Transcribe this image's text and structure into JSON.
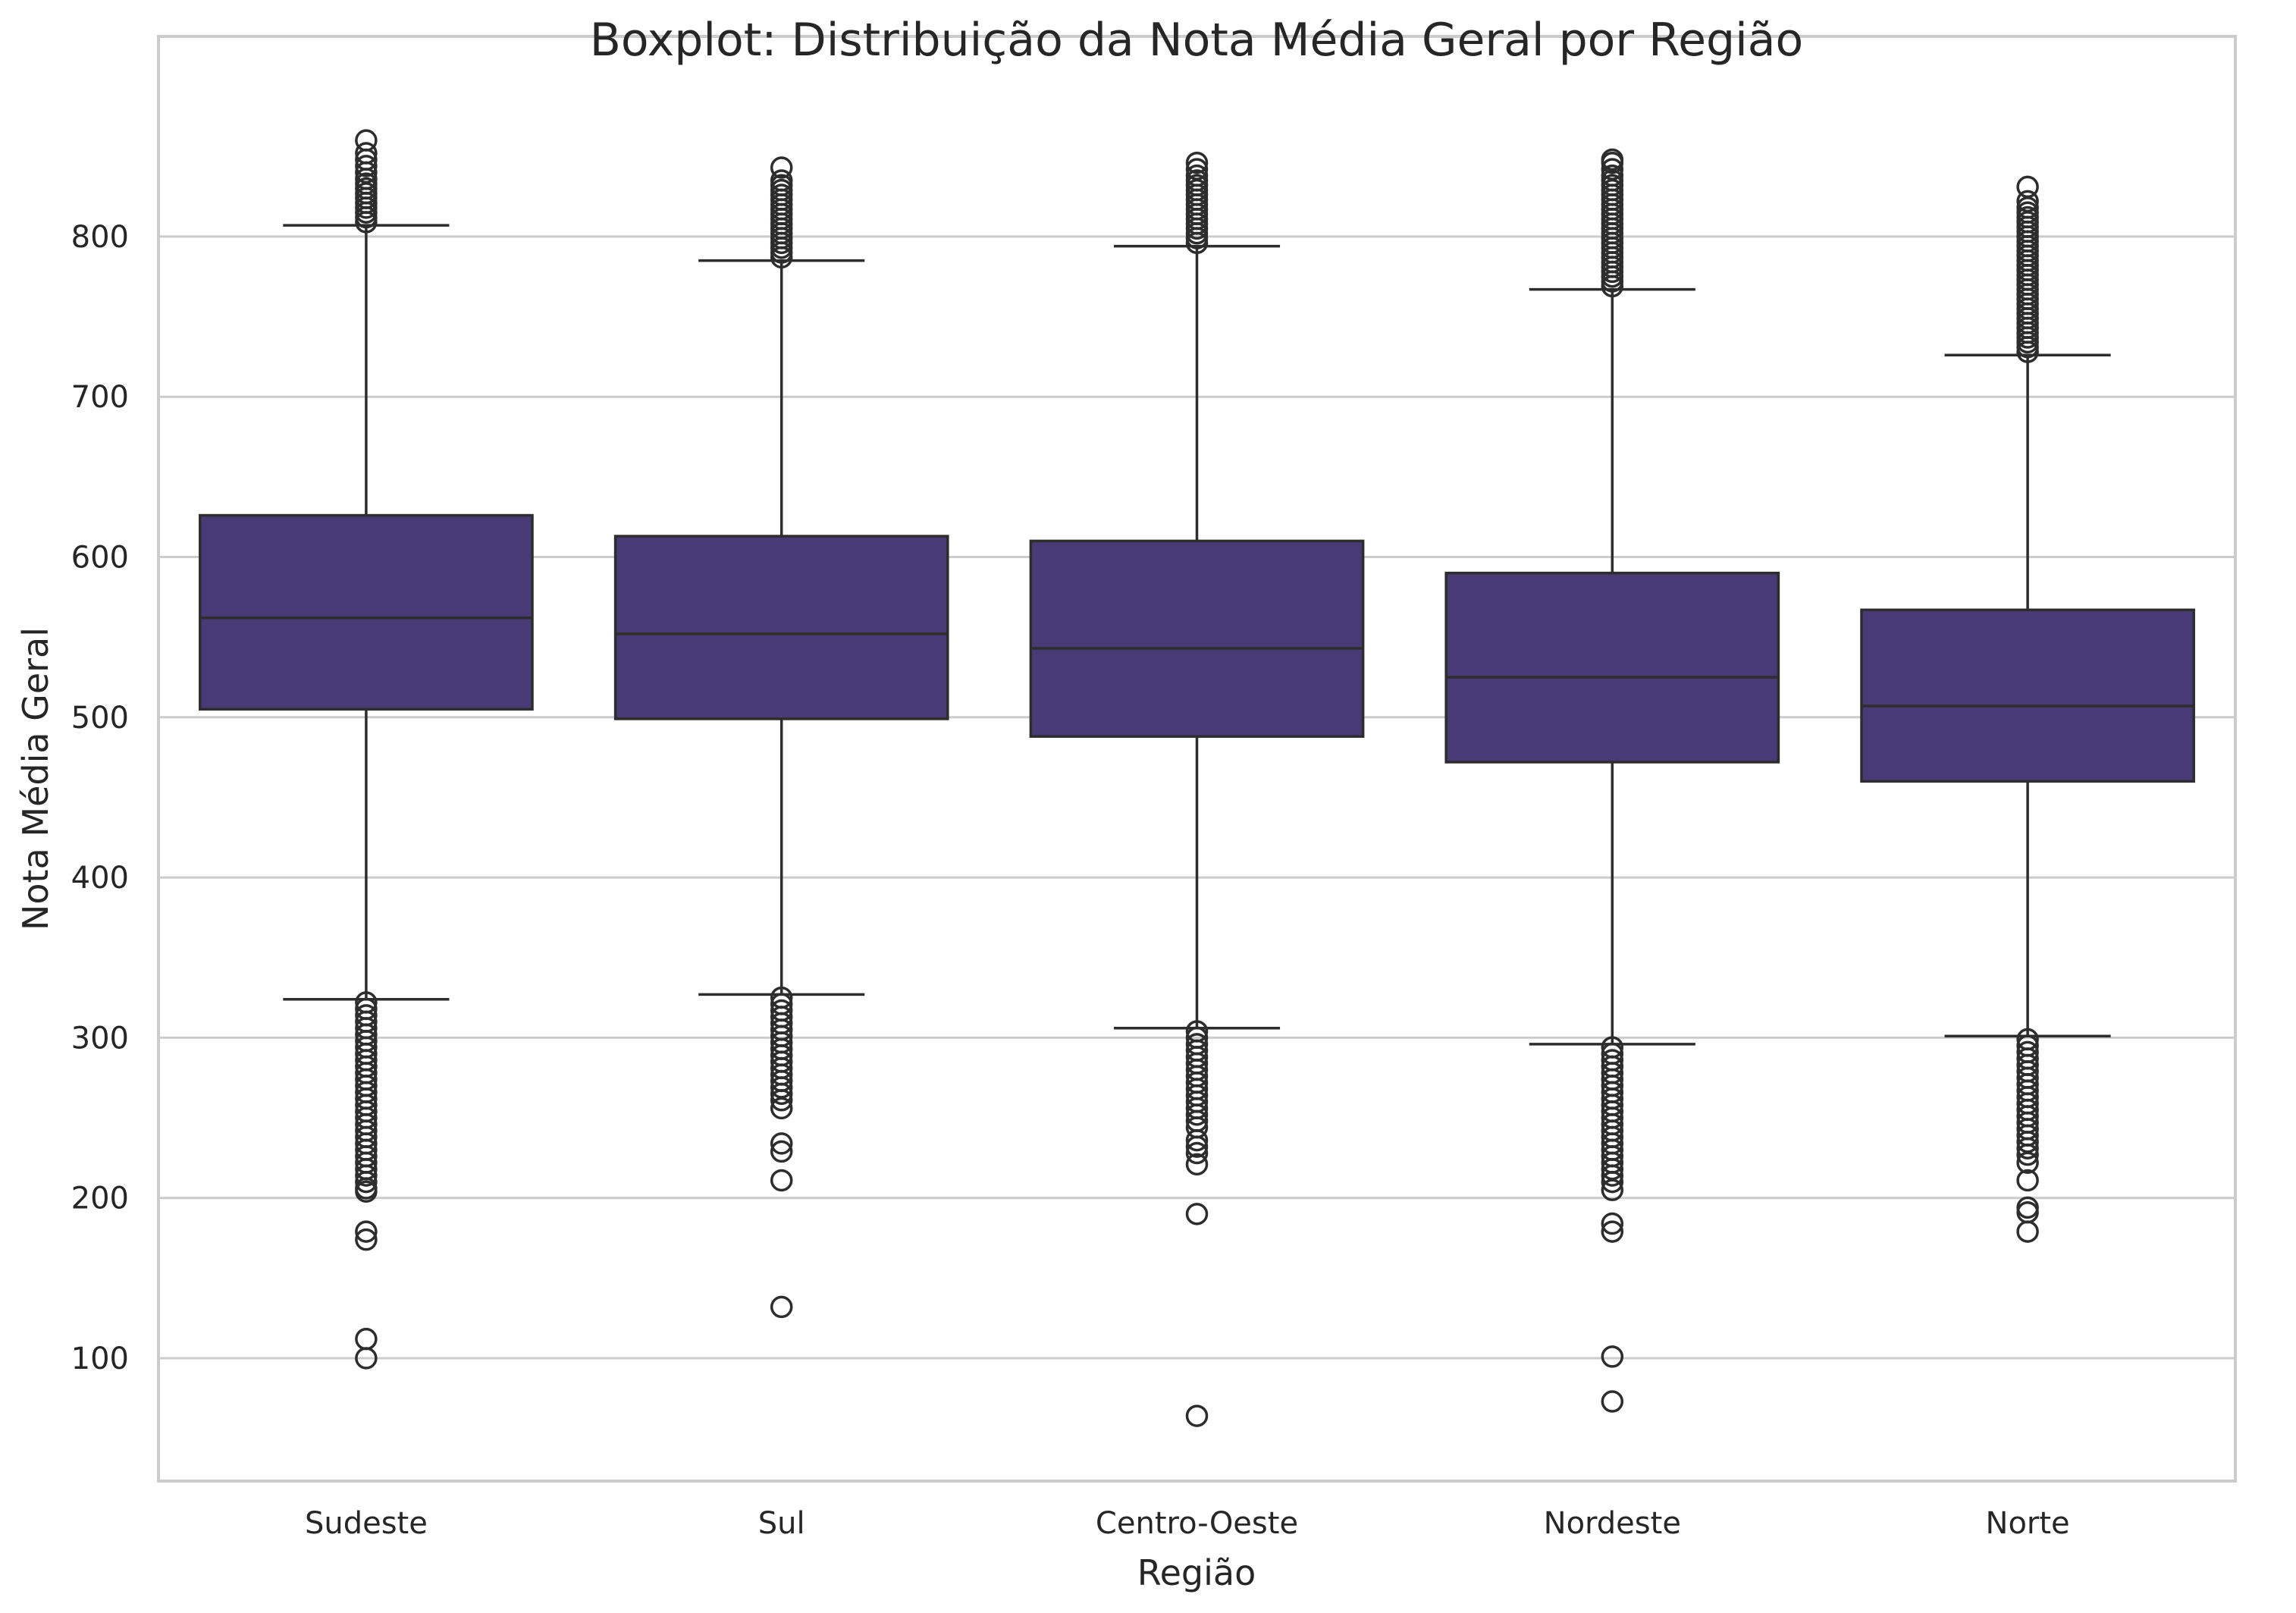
{
  "chart_data": {
    "type": "boxplot",
    "title": "Boxplot: Distribuição da Nota Média Geral por Região",
    "xlabel": "Região",
    "ylabel": "Nota Média Geral",
    "ylim": [
      23,
      896
    ],
    "yticks": [
      100,
      200,
      300,
      400,
      500,
      600,
      700,
      800
    ],
    "grid": true,
    "colors": {
      "box_fill": "#483a75",
      "line": "#2d2d2d",
      "grid": "#cccccc",
      "spine": "#cccccc",
      "background": "#ffffff"
    },
    "categories": [
      "Sudeste",
      "Sul",
      "Centro-Oeste",
      "Nordeste",
      "Norte"
    ],
    "boxes": [
      {
        "category": "Sudeste",
        "whisker_low": 324,
        "q1": 505,
        "median": 562,
        "q3": 626,
        "whisker_high": 807,
        "outliers_low": [
          322,
          318,
          314,
          310,
          306,
          302,
          298,
          294,
          290,
          286,
          282,
          278,
          274,
          270,
          266,
          262,
          258,
          254,
          250,
          246,
          242,
          238,
          234,
          230,
          226,
          222,
          218,
          214,
          210,
          206,
          204,
          179,
          174,
          112,
          100
        ],
        "outliers_high": [
          809,
          812,
          815,
          818,
          821,
          824,
          827,
          830,
          833,
          836,
          840,
          844,
          848,
          852,
          860
        ]
      },
      {
        "category": "Sul",
        "whisker_low": 327,
        "q1": 499,
        "median": 552,
        "q3": 613,
        "whisker_high": 785,
        "outliers_low": [
          325,
          321,
          317,
          313,
          309,
          305,
          301,
          297,
          293,
          289,
          285,
          281,
          277,
          273,
          269,
          265,
          261,
          256,
          234,
          229,
          211,
          132
        ],
        "outliers_high": [
          787,
          790,
          793,
          796,
          799,
          802,
          805,
          808,
          811,
          814,
          817,
          820,
          823,
          826,
          829,
          832,
          835,
          843
        ]
      },
      {
        "category": "Centro-Oeste",
        "whisker_low": 306,
        "q1": 488,
        "median": 543,
        "q3": 610,
        "whisker_high": 794,
        "outliers_low": [
          304,
          300,
          296,
          292,
          288,
          284,
          280,
          276,
          272,
          268,
          264,
          260,
          256,
          252,
          248,
          244,
          236,
          232,
          228,
          221,
          190,
          64
        ],
        "outliers_high": [
          796,
          799,
          802,
          805,
          808,
          811,
          814,
          817,
          820,
          823,
          826,
          829,
          832,
          835,
          838,
          842,
          846
        ]
      },
      {
        "category": "Nordeste",
        "whisker_low": 296,
        "q1": 472,
        "median": 525,
        "q3": 590,
        "whisker_high": 767,
        "outliers_low": [
          294,
          290,
          286,
          282,
          278,
          274,
          270,
          266,
          262,
          258,
          254,
          250,
          246,
          242,
          238,
          234,
          230,
          226,
          222,
          218,
          214,
          210,
          205,
          184,
          179,
          101,
          73
        ],
        "outliers_high": [
          769,
          772,
          775,
          778,
          781,
          784,
          787,
          790,
          793,
          796,
          799,
          802,
          805,
          808,
          811,
          814,
          817,
          820,
          823,
          826,
          829,
          832,
          835,
          838,
          842,
          846,
          848
        ]
      },
      {
        "category": "Norte",
        "whisker_low": 301,
        "q1": 460,
        "median": 507,
        "q3": 567,
        "whisker_high": 726,
        "outliers_low": [
          299,
          295,
          291,
          287,
          283,
          279,
          275,
          271,
          267,
          263,
          259,
          255,
          251,
          247,
          243,
          239,
          235,
          231,
          227,
          222,
          211,
          194,
          191,
          179
        ],
        "outliers_high": [
          728,
          731,
          734,
          737,
          740,
          743,
          746,
          749,
          752,
          755,
          758,
          761,
          764,
          767,
          770,
          773,
          776,
          779,
          782,
          785,
          788,
          791,
          794,
          797,
          800,
          803,
          806,
          809,
          812,
          815,
          818,
          822,
          831
        ]
      }
    ]
  }
}
